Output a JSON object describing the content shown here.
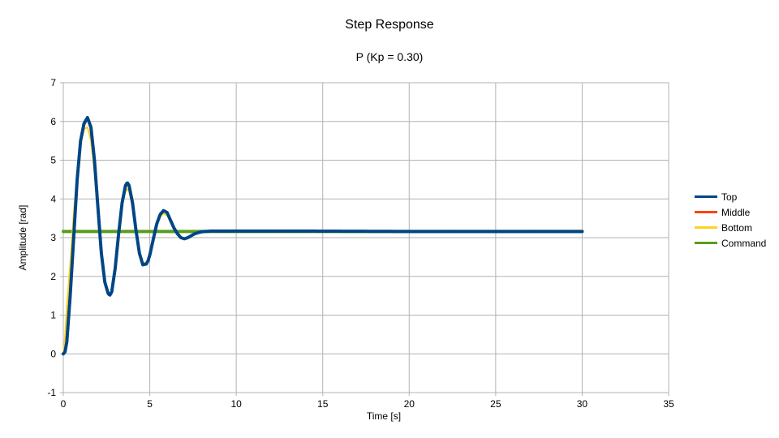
{
  "chart_data": {
    "type": "line",
    "title": "Step Response",
    "subtitle": "P (Kp = 0.30)",
    "xlabel": "Time [s]",
    "ylabel": "Amplitude [rad]",
    "xlim": [
      0,
      35
    ],
    "ylim": [
      -1,
      7
    ],
    "xticks": [
      0,
      5,
      10,
      15,
      20,
      25,
      30,
      35
    ],
    "yticks": [
      -1,
      0,
      1,
      2,
      3,
      4,
      5,
      6,
      7
    ],
    "grid": true,
    "legend_position": "right",
    "colors": {
      "Top": "#004586",
      "Middle": "#ff420e",
      "Bottom": "#ffd320",
      "Command": "#579d1c"
    },
    "series": [
      {
        "name": "Top",
        "x": [
          0,
          0.1,
          0.2,
          0.4,
          0.6,
          0.8,
          1.0,
          1.2,
          1.4,
          1.6,
          1.8,
          2.0,
          2.2,
          2.4,
          2.6,
          2.7,
          2.8,
          3.0,
          3.2,
          3.4,
          3.6,
          3.7,
          3.8,
          4.0,
          4.2,
          4.4,
          4.6,
          4.8,
          4.9,
          5.0,
          5.2,
          5.4,
          5.6,
          5.8,
          6.0,
          6.2,
          6.4,
          6.6,
          6.8,
          7.0,
          7.2,
          7.4,
          7.6,
          7.8,
          8.0,
          8.5,
          9.0,
          10.0,
          12.0,
          14.2,
          20.0,
          25.0,
          30.0
        ],
        "y": [
          0.0,
          0.05,
          0.3,
          1.5,
          3.0,
          4.5,
          5.5,
          5.95,
          6.1,
          5.85,
          5.0,
          3.8,
          2.6,
          1.85,
          1.55,
          1.52,
          1.6,
          2.2,
          3.1,
          3.9,
          4.35,
          4.42,
          4.35,
          3.9,
          3.2,
          2.6,
          2.3,
          2.32,
          2.4,
          2.55,
          2.95,
          3.35,
          3.6,
          3.7,
          3.65,
          3.45,
          3.25,
          3.1,
          3.0,
          2.97,
          3.0,
          3.05,
          3.1,
          3.13,
          3.15,
          3.17,
          3.17,
          3.17,
          3.17,
          3.17,
          3.16,
          3.16,
          3.16
        ]
      },
      {
        "name": "Middle",
        "x": [
          0,
          0.1,
          0.2,
          0.4,
          0.6,
          0.8,
          1.0,
          1.2,
          1.4,
          1.6,
          1.8,
          2.0,
          2.2,
          2.4,
          2.6,
          2.7,
          2.8,
          3.0,
          3.2,
          3.4,
          3.6,
          3.7,
          3.8,
          4.0,
          4.2,
          4.4,
          4.6,
          4.8,
          4.9,
          5.0,
          5.2,
          5.4,
          5.6,
          5.8,
          6.0,
          6.2,
          6.4,
          6.6,
          6.8,
          7.0,
          7.2,
          7.4,
          7.6,
          7.8,
          8.0,
          8.5,
          9.0,
          10.0,
          12.0,
          14.2
        ],
        "y": [
          0.0,
          0.05,
          0.3,
          1.5,
          3.0,
          4.5,
          5.45,
          5.9,
          6.05,
          5.8,
          4.95,
          3.75,
          2.6,
          1.85,
          1.55,
          1.52,
          1.6,
          2.2,
          3.1,
          3.9,
          4.3,
          4.38,
          4.32,
          3.9,
          3.2,
          2.6,
          2.3,
          2.32,
          2.4,
          2.55,
          2.95,
          3.35,
          3.58,
          3.68,
          3.63,
          3.45,
          3.25,
          3.1,
          3.0,
          2.97,
          3.0,
          3.05,
          3.1,
          3.13,
          3.15,
          3.17,
          3.17,
          3.17,
          3.17,
          3.17
        ]
      },
      {
        "name": "Bottom",
        "x": [
          0,
          0.1,
          0.2,
          0.4,
          0.6,
          0.8,
          1.0,
          1.2,
          1.4,
          1.6,
          1.8,
          2.0,
          2.2,
          2.4,
          2.6,
          2.7,
          2.8,
          3.0,
          3.2,
          3.4,
          3.6,
          3.7,
          3.8,
          4.0,
          4.2,
          4.4,
          4.6,
          4.8,
          4.9,
          5.0,
          5.2,
          5.4,
          5.6,
          5.8,
          6.0,
          6.2,
          6.4,
          6.6,
          6.8,
          7.0,
          7.2,
          7.4,
          7.6,
          7.8,
          8.0,
          8.5,
          9.0,
          10.0,
          12.0,
          14.2
        ],
        "y": [
          0.0,
          0.4,
          1.2,
          2.3,
          3.6,
          4.7,
          5.4,
          5.8,
          5.85,
          5.5,
          4.7,
          3.6,
          2.5,
          1.8,
          1.55,
          1.55,
          1.65,
          2.3,
          3.15,
          3.85,
          4.2,
          4.25,
          4.2,
          3.8,
          3.15,
          2.6,
          2.35,
          2.35,
          2.45,
          2.6,
          2.95,
          3.3,
          3.55,
          3.62,
          3.58,
          3.42,
          3.25,
          3.1,
          3.0,
          2.98,
          3.0,
          3.05,
          3.1,
          3.13,
          3.15,
          3.16,
          3.17,
          3.17,
          3.17,
          3.17
        ]
      },
      {
        "name": "Command",
        "x": [
          0,
          30
        ],
        "y": [
          3.16,
          3.16
        ]
      }
    ]
  }
}
